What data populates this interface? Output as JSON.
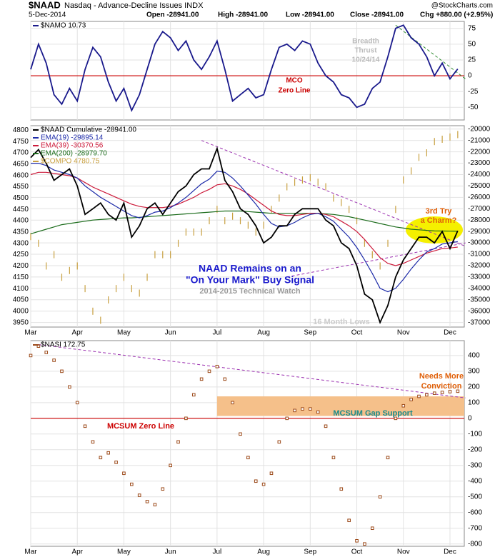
{
  "header": {
    "symbol": "$NAAD",
    "description": "Nasdaq - Advance-Decline Issues INDX",
    "date": "5-Dec-2014",
    "open": "Open -28941.00",
    "high": "High -28941.00",
    "low": "Low -28941.00",
    "close": "Close -28941.00",
    "change": "Chg +880.00 (+2.95%)",
    "watermark": "@StockCharts.com"
  },
  "chart_data": [
    {
      "type": "line",
      "series": [
        {
          "name": "$NAMO 10.73",
          "color": "#1a1a8c",
          "values": [
            10,
            50,
            20,
            -30,
            -45,
            -20,
            -40,
            10,
            45,
            30,
            -10,
            -40,
            -20,
            -55,
            -30,
            10,
            50,
            70,
            60,
            40,
            55,
            25,
            10,
            30,
            55,
            10,
            -40,
            -30,
            -20,
            -35,
            -30,
            10,
            45,
            50,
            40,
            55,
            50,
            20,
            0,
            -10,
            -30,
            -35,
            -50,
            -45,
            -20,
            -10,
            30,
            75,
            80,
            60,
            50,
            30,
            0,
            20,
            -5,
            10.73
          ]
        }
      ],
      "ylim": [
        -70,
        86
      ],
      "yticks": [
        75,
        50,
        25,
        0,
        -25,
        -50
      ],
      "grid": true,
      "reference_line": {
        "value": 0,
        "color": "#cc0000"
      },
      "trendlines": [
        {
          "from": [
            47,
            80
          ],
          "to": [
            56,
            -5
          ],
          "color": "#2e8b2e"
        }
      ],
      "annotations": [
        "Breadth",
        "Thrust",
        "10/24/14",
        "MCO",
        "Zero Line"
      ]
    },
    {
      "type": "line",
      "categories": [
        "Mar",
        null,
        null,
        null,
        null,
        null,
        "Apr",
        null,
        null,
        null,
        null,
        null,
        "May",
        null,
        null,
        null,
        null,
        null,
        "Jun",
        null,
        null,
        null,
        null,
        null,
        "Jul",
        null,
        null,
        null,
        null,
        null,
        "Aug",
        null,
        null,
        null,
        null,
        null,
        "Sep",
        null,
        null,
        null,
        null,
        null,
        "Oct",
        null,
        null,
        null,
        null,
        null,
        "Nov",
        null,
        null,
        null,
        null,
        null,
        "Dec",
        null
      ],
      "series": [
        {
          "name": "$COMPO 4780.75",
          "color": "#c8a040",
          "axis": "y2",
          "style": "ticks",
          "values": [
            4330,
            4300,
            4200,
            4250,
            4150,
            4180,
            4200,
            4100,
            4000,
            3960,
            4050,
            4100,
            4150,
            4100,
            4080,
            4150,
            4250,
            4250,
            4250,
            4300,
            4350,
            4350,
            4350,
            4400,
            4450,
            4400,
            4420,
            4400,
            4380,
            4350,
            4380,
            4450,
            4500,
            4550,
            4570,
            4580,
            4590,
            4570,
            4550,
            4500,
            4480,
            4450,
            4400,
            4300,
            4250,
            4200,
            4300,
            4450,
            4580,
            4620,
            4680,
            4700,
            4750,
            4760,
            4770,
            4780.75
          ]
        },
        {
          "name": "EMA(200) -28979.70",
          "color": "#1a6b1a",
          "values": [
            -29200,
            -29000,
            -28800,
            -28600,
            -28400,
            -28300,
            -28200,
            -28100,
            -28000,
            -27950,
            -27900,
            -27850,
            -27800,
            -27800,
            -27750,
            -27700,
            -27650,
            -27600,
            -27550,
            -27500,
            -27450,
            -27400,
            -27350,
            -27300,
            -27250,
            -27200,
            -27200,
            -27200,
            -27250,
            -27300,
            -27350,
            -27400,
            -27400,
            -27400,
            -27400,
            -27400,
            -27400,
            -27400,
            -27450,
            -27500,
            -27600,
            -27700,
            -27850,
            -28000,
            -28150,
            -28300,
            -28450,
            -28600,
            -28700,
            -28800,
            -28850,
            -28900,
            -28950,
            -28960,
            -28970,
            -28979.7
          ]
        },
        {
          "name": "EMA(39) -30370.56",
          "color": "#cc1a3a",
          "values": [
            -24000,
            -23800,
            -23800,
            -23900,
            -24000,
            -24100,
            -24300,
            -24700,
            -25100,
            -25400,
            -25700,
            -26000,
            -26300,
            -26600,
            -26800,
            -26900,
            -26900,
            -26900,
            -26800,
            -26600,
            -26300,
            -26000,
            -25600,
            -25300,
            -24900,
            -24800,
            -25000,
            -25300,
            -25700,
            -26200,
            -26700,
            -27200,
            -27500,
            -27600,
            -27600,
            -27500,
            -27400,
            -27400,
            -27500,
            -27700,
            -28100,
            -28500,
            -29000,
            -29700,
            -30500,
            -31300,
            -31800,
            -32000,
            -31800,
            -31500,
            -31200,
            -30900,
            -30700,
            -30500,
            -30450,
            -30370.56
          ]
        },
        {
          "name": "EMA(19) -29895.14",
          "color": "#1c2aa8",
          "values": [
            -23000,
            -23000,
            -23200,
            -23600,
            -23800,
            -24000,
            -24300,
            -25000,
            -25500,
            -26000,
            -26400,
            -26800,
            -27200,
            -27600,
            -27800,
            -27600,
            -27300,
            -27200,
            -26900,
            -26500,
            -26000,
            -25400,
            -24800,
            -24400,
            -23700,
            -23800,
            -24300,
            -25000,
            -25800,
            -26600,
            -27500,
            -28300,
            -28600,
            -28500,
            -28200,
            -27800,
            -27500,
            -27400,
            -27700,
            -28100,
            -28800,
            -29500,
            -30400,
            -31500,
            -32700,
            -34000,
            -34300,
            -34000,
            -33200,
            -32300,
            -31500,
            -30800,
            -30500,
            -30100,
            -30000,
            -29895.14
          ]
        },
        {
          "name": "$NAAD Cumulative -28941.00",
          "color": "#000000",
          "values": [
            -22500,
            -21800,
            -23000,
            -24500,
            -24000,
            -23500,
            -25000,
            -27500,
            -27000,
            -26500,
            -27500,
            -28000,
            -26500,
            -29500,
            -28500,
            -27000,
            -26500,
            -27500,
            -26500,
            -25500,
            -25000,
            -24000,
            -23500,
            -23500,
            -21700,
            -24500,
            -25500,
            -27000,
            -27500,
            -28500,
            -30000,
            -29500,
            -28500,
            -28500,
            -27500,
            -27000,
            -27000,
            -27000,
            -28000,
            -28500,
            -30000,
            -30500,
            -32000,
            -34500,
            -35000,
            -37000,
            -35500,
            -33000,
            -31500,
            -30500,
            -29500,
            -29500,
            -30000,
            -29000,
            -30500,
            -28941
          ]
        }
      ],
      "ylim": [
        -37400,
        -19700
      ],
      "yticks": [
        -20000,
        -21000,
        -22000,
        -23000,
        -24000,
        -25000,
        -26000,
        -27000,
        -28000,
        -29000,
        -30000,
        -31000,
        -32000,
        -33000,
        -34000,
        -35000,
        -36000,
        -37000
      ],
      "y2lim": [
        3930,
        4820
      ],
      "y2ticks": [
        4800,
        4750,
        4700,
        4650,
        4600,
        4550,
        4500,
        4450,
        4400,
        4350,
        4300,
        4250,
        4200,
        4150,
        4100,
        4050,
        4000,
        3950
      ],
      "grid": true,
      "trendlines": [
        {
          "from": [
            22,
            -21000
          ],
          "to": [
            56,
            -30300
          ],
          "color": "#9b30b0"
        },
        {
          "from": [
            33,
            -33000
          ],
          "to": [
            56,
            -30000
          ],
          "color": "#9b30b0"
        }
      ],
      "annotations": [
        "NAAD Remains on an",
        "\"On Your Mark\" Buy Signal",
        "2014-2015 Technical Watch",
        "16 Month Lows",
        "3rd Try",
        "a Charm?"
      ]
    },
    {
      "type": "line",
      "categories": [
        "Mar",
        null,
        null,
        null,
        null,
        null,
        "Apr",
        null,
        null,
        null,
        null,
        null,
        "May",
        null,
        null,
        null,
        null,
        null,
        "Jun",
        null,
        null,
        null,
        null,
        null,
        "Jul",
        null,
        null,
        null,
        null,
        null,
        "Aug",
        null,
        null,
        null,
        null,
        null,
        "Sep",
        null,
        null,
        null,
        null,
        null,
        "Oct",
        null,
        null,
        null,
        null,
        null,
        "Nov",
        null,
        null,
        null,
        null,
        null,
        "Dec",
        null
      ],
      "series": [
        {
          "name": "$NASI 172.75",
          "color": "#9c4a1a",
          "style": "dots",
          "values": [
            400,
            460,
            420,
            370,
            300,
            200,
            100,
            -50,
            -150,
            -250,
            -220,
            -280,
            -350,
            -420,
            -490,
            -530,
            -550,
            -450,
            -300,
            -150,
            0,
            150,
            250,
            300,
            330,
            250,
            100,
            -100,
            -250,
            -400,
            -420,
            -350,
            -150,
            0,
            50,
            60,
            60,
            40,
            -50,
            -250,
            -450,
            -650,
            -780,
            -800,
            -700,
            -500,
            -250,
            0,
            80,
            120,
            140,
            150,
            160,
            165,
            170,
            172.75
          ]
        }
      ],
      "ylim": [
        -815,
        495
      ],
      "yticks": [
        400,
        300,
        200,
        100,
        0,
        -100,
        -200,
        -300,
        -400,
        -500,
        -600,
        -700,
        -800
      ],
      "grid": true,
      "reference_line": {
        "value": 0,
        "color": "#cc0000"
      },
      "band": {
        "x": [
          24,
          56
        ],
        "y": [
          15,
          140
        ],
        "color": "#f5c08a"
      },
      "trendlines": [
        {
          "from": [
            1,
            470
          ],
          "to": [
            56,
            130
          ],
          "color": "#9b30b0"
        }
      ],
      "annotations": [
        "MCSUM Zero Line",
        "MCSUM Gap Support",
        "Needs More",
        "Conviction"
      ]
    }
  ]
}
